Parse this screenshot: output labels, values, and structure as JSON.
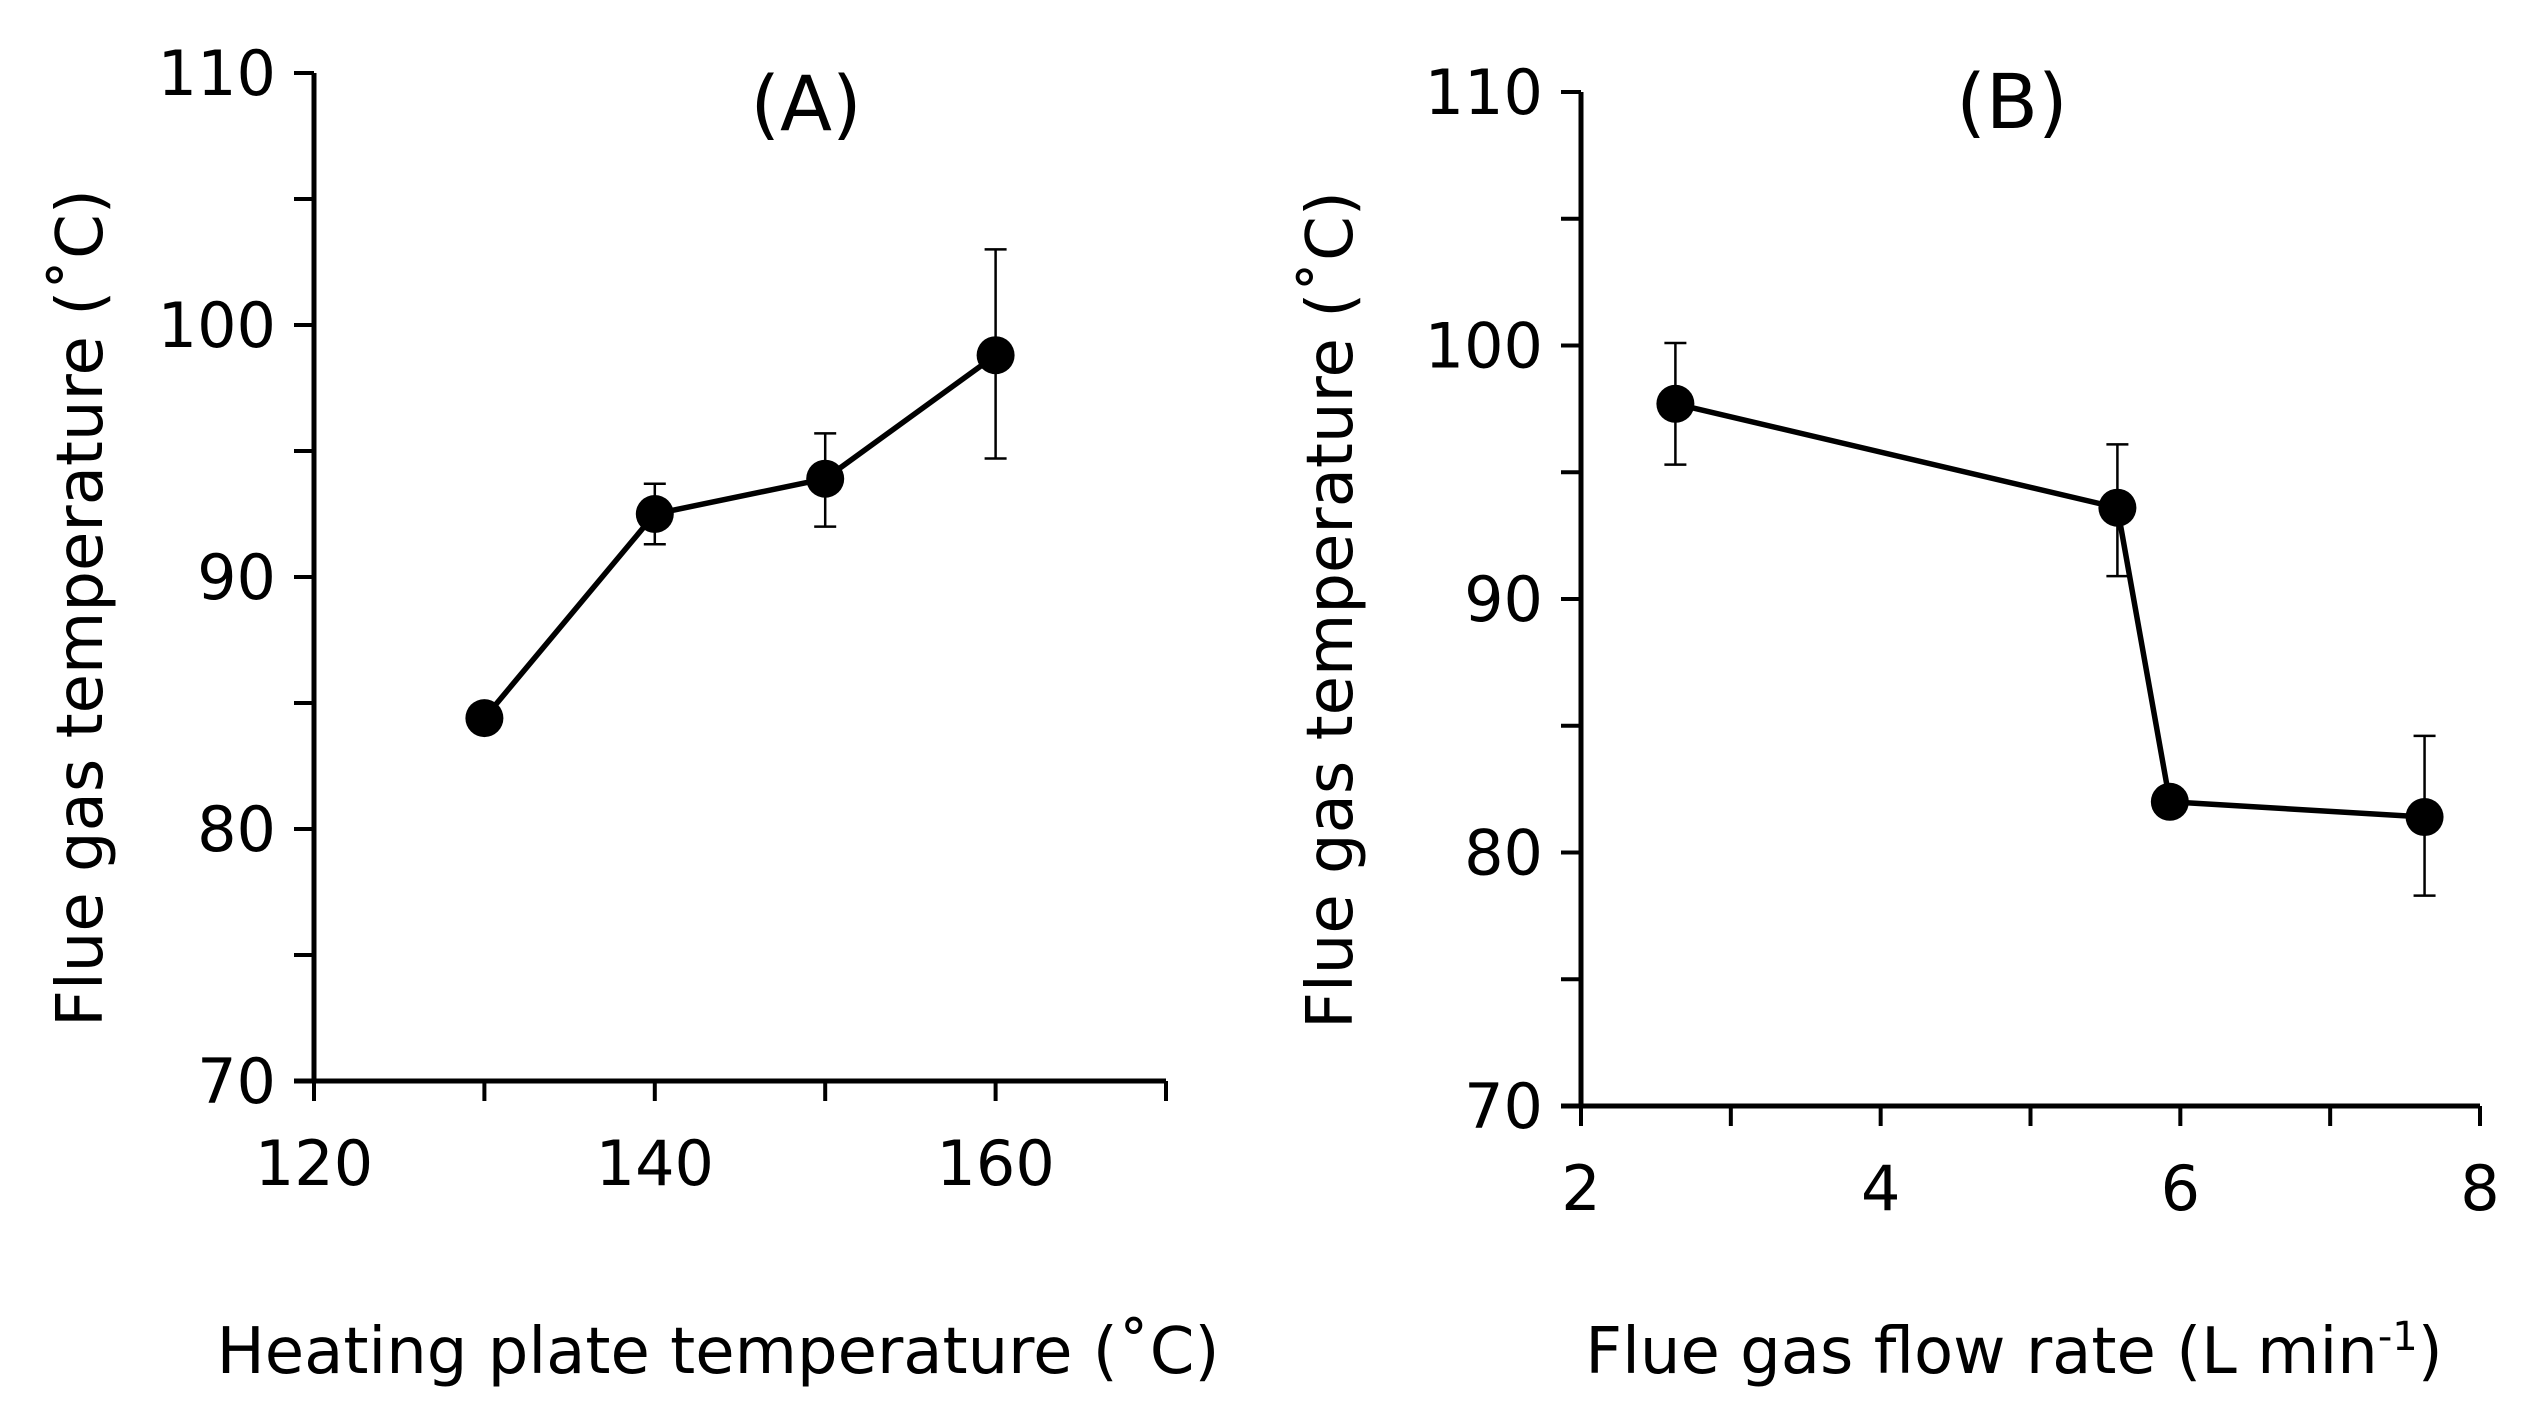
{
  "chart_data": [
    {
      "type": "line",
      "title": "(A)",
      "xlabel": "Heating plate temperature (˚C)",
      "ylabel": "Flue gas temperature (˚C)",
      "xlim": [
        120,
        170
      ],
      "ylim": [
        70,
        110
      ],
      "xticks": [
        120,
        140,
        160
      ],
      "xticks_minor": [
        130,
        150,
        170
      ],
      "yticks": [
        70,
        80,
        90,
        100,
        110
      ],
      "yticks_minor": [
        75,
        85,
        95,
        105
      ],
      "x": [
        130,
        140,
        150,
        160
      ],
      "y": [
        84.4,
        92.5,
        93.9,
        98.8
      ],
      "err_low": [
        null,
        91.3,
        92.0,
        94.7
      ],
      "err_high": [
        null,
        93.7,
        95.7,
        103.0
      ]
    },
    {
      "type": "line",
      "title": "(B)",
      "xlabel": "Flue gas flow rate (L min",
      "xlabel_sup": "-1",
      "xlabel_end": ")",
      "ylabel": "Flue gas temperature (˚C)",
      "xlim": [
        2,
        8
      ],
      "ylim": [
        70,
        110
      ],
      "xticks": [
        2,
        4,
        6,
        8
      ],
      "xticks_minor": [
        3,
        5,
        7
      ],
      "yticks": [
        70,
        80,
        90,
        100,
        110
      ],
      "yticks_minor": [
        75,
        85,
        95,
        105
      ],
      "x": [
        2.63,
        5.58,
        5.93,
        7.63
      ],
      "y": [
        97.7,
        93.6,
        82.0,
        81.4
      ],
      "err_low": [
        95.3,
        90.9,
        null,
        78.3
      ],
      "err_high": [
        100.1,
        96.1,
        null,
        84.6
      ]
    }
  ]
}
